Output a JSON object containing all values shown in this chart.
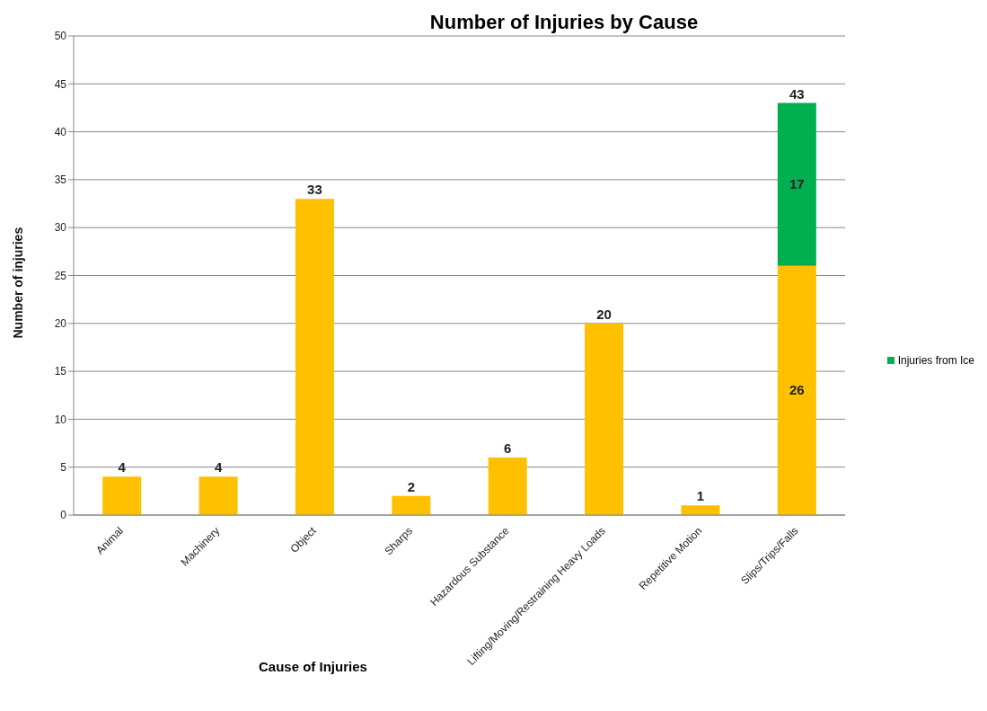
{
  "chart_data": {
    "type": "bar",
    "title": "Number of Injuries by Cause",
    "xlabel": "Cause of Injuries",
    "ylabel": "Number of injuries",
    "categories": [
      "Animal",
      "Machinery",
      "Object",
      "Sharps",
      "Hazardous Substance",
      "Lifting/Moving/Restraining Heavy Loads",
      "Repetitive Motion",
      "Slips/Trips/Falls"
    ],
    "series": [
      {
        "color": "#ffc000",
        "values": [
          4,
          4,
          33,
          2,
          6,
          20,
          1,
          26
        ]
      },
      {
        "name": "Injuries from Ice",
        "color": "#00b050",
        "values": [
          null,
          null,
          null,
          null,
          null,
          null,
          null,
          17
        ]
      }
    ],
    "stacked": true,
    "data_labels": true,
    "totals": [
      null,
      null,
      null,
      null,
      null,
      null,
      null,
      "43"
    ],
    "ylim": [
      0,
      50
    ],
    "yticks": [
      0,
      5,
      10,
      15,
      20,
      25,
      30,
      35,
      40,
      45,
      50
    ],
    "grid": "y",
    "legend": "right"
  }
}
